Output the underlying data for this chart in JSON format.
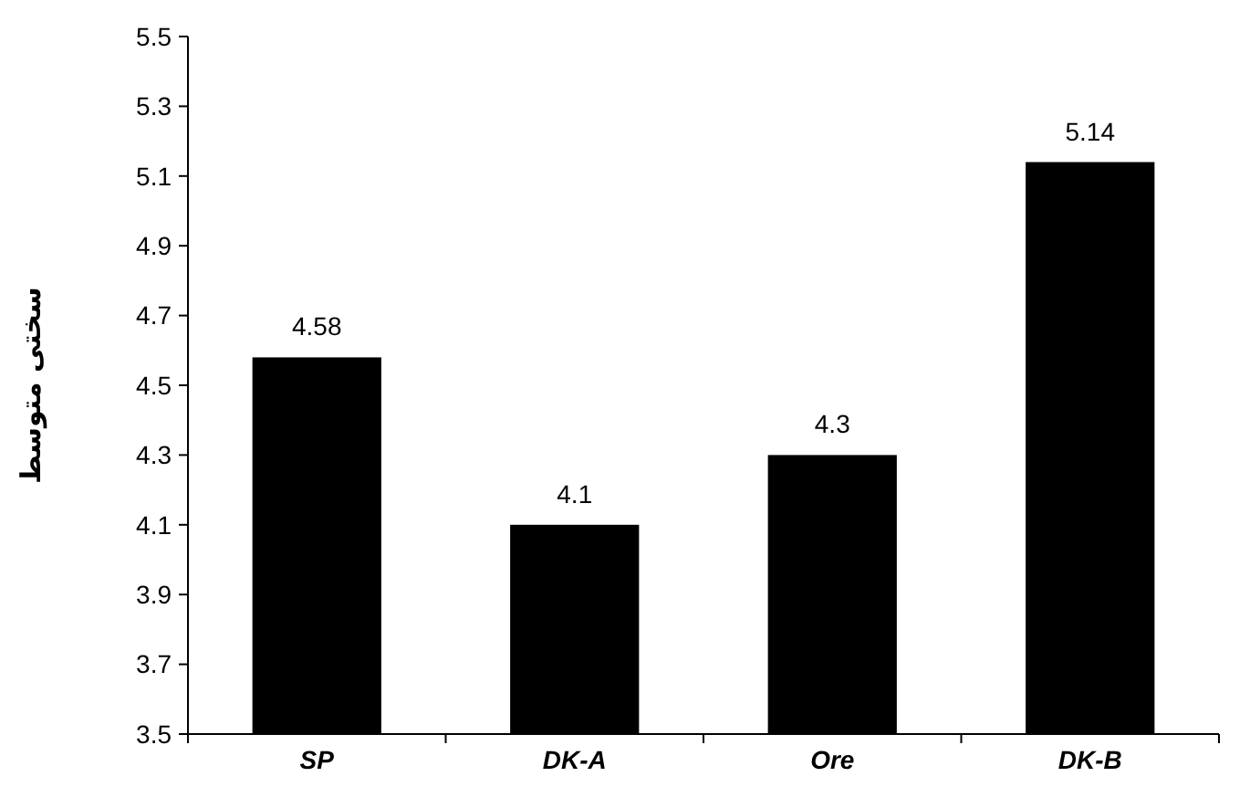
{
  "chart_data": {
    "type": "bar",
    "ylabel": "سختی متوسط",
    "categories": [
      "SP",
      "DK-A",
      "Ore",
      "DK-B"
    ],
    "values": [
      4.58,
      4.1,
      4.3,
      5.14
    ],
    "color": "#000000",
    "data_labels": true,
    "grid": false,
    "ylim": [
      3.5,
      5.5
    ],
    "yticks": [
      3.5,
      3.7,
      3.9,
      4.1,
      4.3,
      4.5,
      4.7,
      4.9,
      5.1,
      5.3,
      5.5
    ]
  }
}
